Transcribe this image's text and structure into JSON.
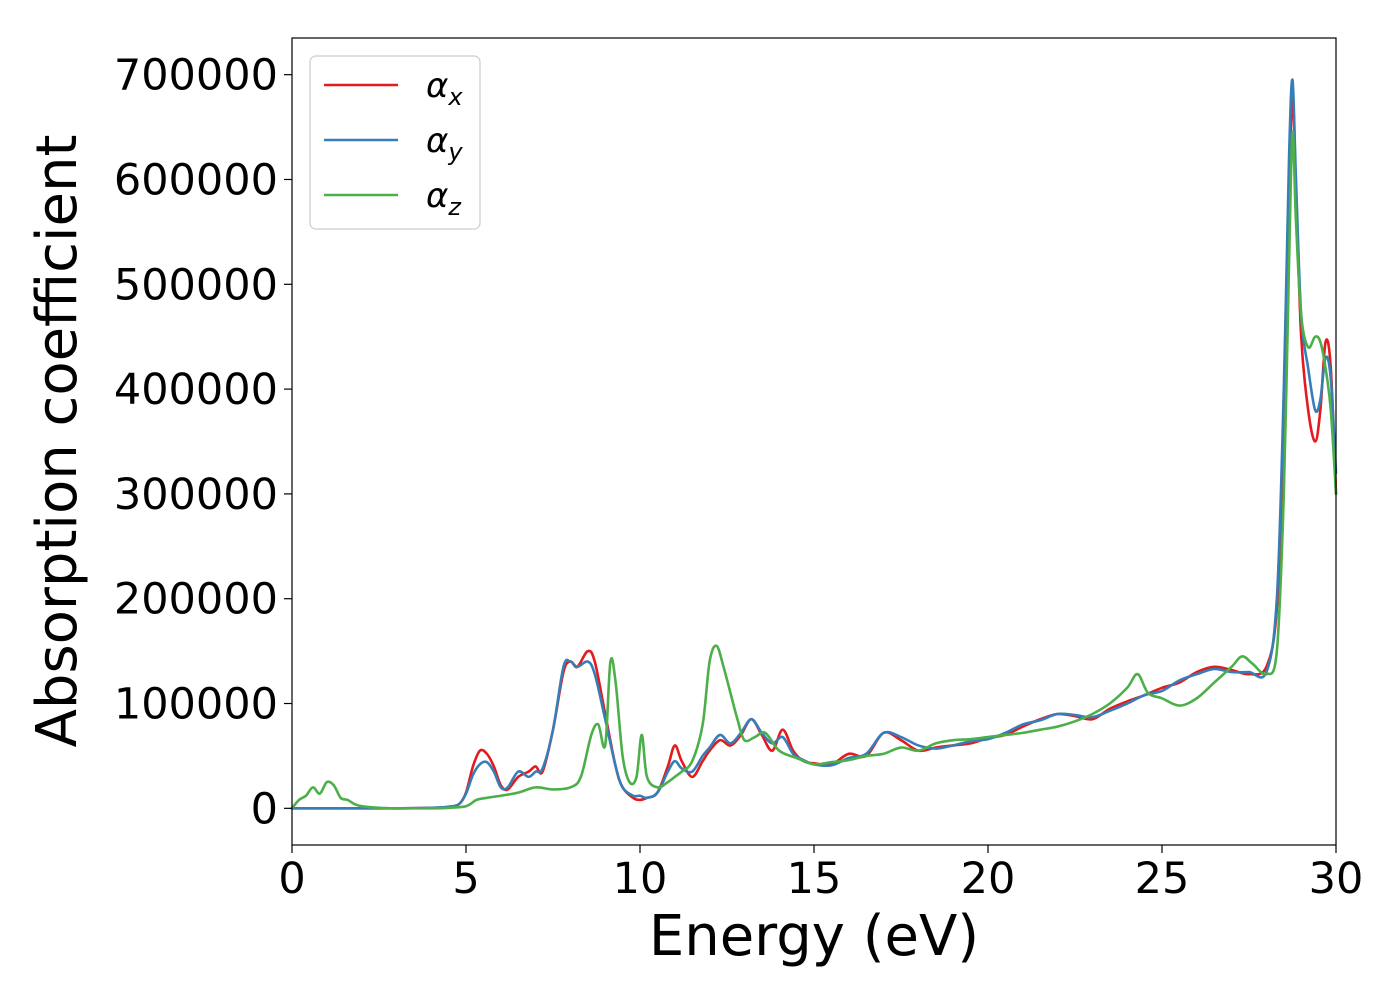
{
  "chart_data": {
    "type": "line",
    "title": "",
    "xlabel": "Energy (eV)",
    "ylabel": "Absorption coefficient",
    "xlim": [
      0,
      30
    ],
    "ylim": [
      -35000,
      735000
    ],
    "xticks": [
      0,
      5,
      10,
      15,
      20,
      25,
      30
    ],
    "xtick_labels": [
      "0",
      "5",
      "10",
      "15",
      "20",
      "25",
      "30"
    ],
    "yticks": [
      0,
      100000,
      200000,
      300000,
      400000,
      500000,
      600000,
      700000
    ],
    "ytick_labels": [
      "0",
      "100000",
      "200000",
      "300000",
      "400000",
      "500000",
      "600000",
      "700000"
    ],
    "grid": false,
    "legend_position": "top-left",
    "series": [
      {
        "name": "α_x",
        "legend_main": "α",
        "legend_sub": "x",
        "color": "#e41a1c",
        "x": [
          0,
          1,
          2,
          3,
          4,
          4.5,
          4.8,
          5.0,
          5.2,
          5.4,
          5.6,
          5.8,
          6.0,
          6.2,
          6.5,
          6.8,
          7.0,
          7.2,
          7.5,
          7.8,
          8.0,
          8.2,
          8.5,
          8.7,
          9.0,
          9.3,
          9.5,
          9.8,
          10.0,
          10.2,
          10.5,
          10.8,
          11.0,
          11.2,
          11.5,
          11.8,
          12.0,
          12.3,
          12.6,
          12.9,
          13.2,
          13.5,
          13.8,
          14.1,
          14.4,
          14.7,
          15.0,
          15.5,
          16.0,
          16.5,
          17.0,
          17.5,
          18.0,
          18.5,
          19.0,
          19.5,
          20.0,
          20.5,
          21.0,
          21.5,
          22.0,
          22.5,
          23.0,
          23.5,
          24.0,
          24.5,
          25.0,
          25.5,
          26.0,
          26.5,
          27.0,
          27.5,
          28.0,
          28.3,
          28.5,
          28.65,
          28.75,
          28.85,
          29.0,
          29.2,
          29.4,
          29.55,
          29.7,
          29.85,
          30.0
        ],
        "values": [
          0,
          0,
          0,
          0,
          500,
          1500,
          4000,
          15000,
          40000,
          55000,
          52000,
          40000,
          22000,
          18000,
          30000,
          35000,
          40000,
          35000,
          75000,
          130000,
          140000,
          135000,
          150000,
          140000,
          90000,
          40000,
          20000,
          10000,
          8000,
          10000,
          15000,
          40000,
          60000,
          45000,
          30000,
          45000,
          55000,
          65000,
          60000,
          70000,
          85000,
          70000,
          55000,
          75000,
          55000,
          45000,
          43000,
          42000,
          52000,
          50000,
          72000,
          65000,
          55000,
          58000,
          60000,
          62000,
          67000,
          70000,
          78000,
          85000,
          90000,
          88000,
          85000,
          95000,
          102000,
          108000,
          115000,
          120000,
          130000,
          135000,
          132000,
          128000,
          135000,
          190000,
          350000,
          580000,
          680000,
          590000,
          450000,
          380000,
          350000,
          380000,
          445000,
          420000,
          300000
        ]
      },
      {
        "name": "α_y",
        "legend_main": "α",
        "legend_sub": "y",
        "color": "#377eb8",
        "x": [
          0,
          1,
          2,
          3,
          4,
          4.5,
          4.8,
          5.0,
          5.2,
          5.4,
          5.6,
          5.8,
          6.0,
          6.2,
          6.5,
          6.8,
          7.0,
          7.2,
          7.5,
          7.8,
          8.0,
          8.2,
          8.5,
          8.7,
          9.0,
          9.3,
          9.5,
          9.8,
          10.0,
          10.2,
          10.5,
          10.8,
          11.0,
          11.2,
          11.5,
          11.8,
          12.0,
          12.3,
          12.6,
          12.9,
          13.2,
          13.5,
          13.8,
          14.1,
          14.4,
          14.7,
          15.0,
          15.5,
          16.0,
          16.5,
          17.0,
          17.5,
          18.0,
          18.5,
          19.0,
          19.5,
          20.0,
          20.5,
          21.0,
          21.5,
          22.0,
          22.5,
          23.0,
          23.5,
          24.0,
          24.5,
          25.0,
          25.5,
          26.0,
          26.5,
          27.0,
          27.5,
          28.0,
          28.3,
          28.5,
          28.65,
          28.75,
          28.85,
          29.0,
          29.2,
          29.4,
          29.55,
          29.7,
          29.85,
          30.0
        ],
        "values": [
          0,
          0,
          0,
          0,
          500,
          1500,
          4000,
          14000,
          32000,
          42000,
          44000,
          35000,
          20000,
          20000,
          35000,
          30000,
          35000,
          38000,
          75000,
          135000,
          140000,
          135000,
          140000,
          128000,
          85000,
          40000,
          20000,
          12000,
          12000,
          10000,
          15000,
          35000,
          45000,
          38000,
          35000,
          50000,
          58000,
          70000,
          62000,
          72000,
          85000,
          72000,
          62000,
          68000,
          52000,
          46000,
          42000,
          41000,
          48000,
          52000,
          72000,
          68000,
          60000,
          57000,
          60000,
          64000,
          66000,
          72000,
          80000,
          84000,
          90000,
          89000,
          87000,
          93000,
          100000,
          108000,
          112000,
          122000,
          128000,
          133000,
          130000,
          130000,
          130000,
          200000,
          400000,
          620000,
          695000,
          600000,
          470000,
          420000,
          380000,
          390000,
          430000,
          410000,
          320000
        ]
      },
      {
        "name": "α_z",
        "legend_main": "α",
        "legend_sub": "z",
        "color": "#4daf4a",
        "x": [
          0,
          0.2,
          0.4,
          0.6,
          0.8,
          1.0,
          1.2,
          1.4,
          1.6,
          1.8,
          2.0,
          2.5,
          3,
          4,
          4.5,
          5.0,
          5.3,
          5.6,
          6.0,
          6.5,
          7.0,
          7.5,
          8.0,
          8.3,
          8.6,
          8.8,
          9.0,
          9.15,
          9.3,
          9.5,
          9.7,
          9.9,
          10.05,
          10.2,
          10.5,
          10.8,
          11.0,
          11.2,
          11.5,
          11.8,
          12.0,
          12.2,
          12.4,
          12.6,
          12.8,
          13.0,
          13.3,
          13.6,
          14.0,
          14.5,
          15.0,
          15.5,
          16.0,
          16.5,
          17.0,
          17.5,
          18.0,
          18.5,
          19.0,
          19.5,
          20.0,
          20.5,
          21.0,
          21.5,
          22.0,
          22.5,
          23.0,
          23.5,
          24.0,
          24.3,
          24.6,
          25.0,
          25.5,
          26.0,
          26.5,
          27.0,
          27.3,
          27.6,
          28.0,
          28.3,
          28.5,
          28.65,
          28.75,
          28.85,
          29.0,
          29.2,
          29.4,
          29.55,
          29.7,
          29.85,
          30.0
        ],
        "values": [
          0,
          8000,
          12000,
          20000,
          14000,
          25000,
          22000,
          10000,
          8000,
          4000,
          2000,
          500,
          0,
          0,
          500,
          2000,
          8000,
          10000,
          12000,
          15000,
          20000,
          18000,
          20000,
          30000,
          70000,
          80000,
          60000,
          140000,
          120000,
          50000,
          25000,
          30000,
          70000,
          30000,
          20000,
          25000,
          30000,
          35000,
          45000,
          80000,
          140000,
          155000,
          135000,
          110000,
          85000,
          65000,
          68000,
          72000,
          55000,
          48000,
          42000,
          44000,
          46000,
          50000,
          52000,
          58000,
          55000,
          62000,
          65000,
          66000,
          68000,
          70000,
          72000,
          75000,
          78000,
          83000,
          90000,
          100000,
          115000,
          128000,
          110000,
          105000,
          98000,
          105000,
          120000,
          135000,
          145000,
          138000,
          128000,
          150000,
          300000,
          520000,
          645000,
          560000,
          470000,
          440000,
          450000,
          445000,
          420000,
          380000,
          300000
        ]
      }
    ]
  }
}
